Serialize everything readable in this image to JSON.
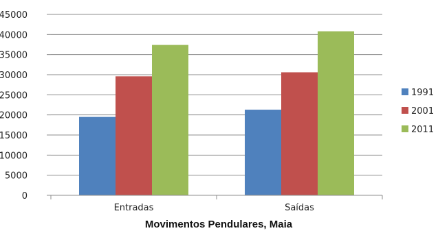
{
  "chart_data": {
    "type": "bar",
    "title": "Movimentos Pendulares, Maia",
    "categories": [
      "Entradas",
      "Saídas"
    ],
    "series": [
      {
        "name": "1991",
        "values": [
          19500,
          21300
        ],
        "color": "#4F81BD"
      },
      {
        "name": "2001",
        "values": [
          29600,
          30600
        ],
        "color": "#C0504D"
      },
      {
        "name": "2011",
        "values": [
          37400,
          40800
        ],
        "color": "#9BBB59"
      }
    ],
    "ylim": [
      0,
      45000
    ],
    "yticks": [
      "0",
      "5000",
      "10000",
      "15000",
      "20000",
      "25000",
      "30000",
      "35000",
      "40000",
      "45000"
    ],
    "grid": true,
    "legend": "right"
  }
}
